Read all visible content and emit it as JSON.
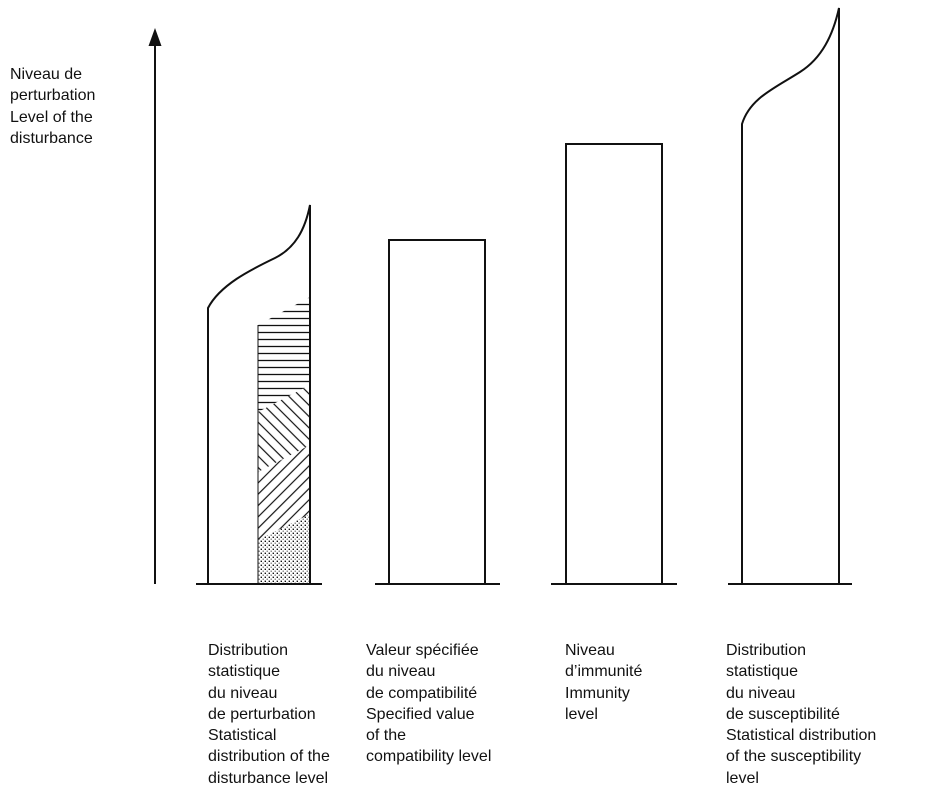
{
  "yaxis": {
    "label_lines": [
      "Niveau de",
      "perturbation",
      "Level of the",
      "disturbance"
    ]
  },
  "columns": [
    {
      "name": "disturbance-distribution",
      "label_lines": [
        "Distribution",
        "statistique",
        "du niveau",
        "de perturbation",
        "Statistical",
        "distribution of the",
        "disturbance level"
      ]
    },
    {
      "name": "compatibility-level",
      "label_lines": [
        "Valeur spécifiée",
        "du niveau",
        "de compatibilité",
        "Specified value",
        "of the",
        "compatibility level"
      ]
    },
    {
      "name": "immunity-level",
      "label_lines": [
        "Niveau",
        "d’immunité",
        "Immunity",
        "level"
      ]
    },
    {
      "name": "susceptibility-distribution",
      "label_lines": [
        "Distribution",
        "statistique",
        "du niveau",
        "de susceptibilité",
        "Statistical distribution",
        "of the susceptibility",
        "level"
      ]
    }
  ],
  "colors": {
    "stroke": "#111111",
    "background": "#ffffff"
  }
}
